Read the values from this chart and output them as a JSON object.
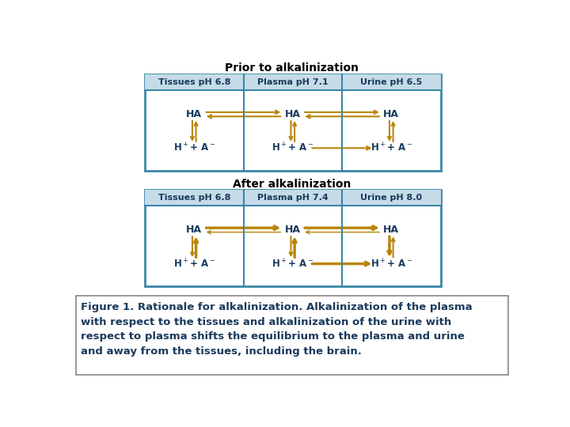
{
  "bg_color": "#ffffff",
  "border_color": "#3a86a8",
  "header_bg": "#c5dce8",
  "arrow_color": "#b8860b",
  "text_color_dark": "#1a3a5c",
  "title1": "Prior to alkalinization",
  "title2": "After alkalinization",
  "panel1_headers": [
    "Tissues pH 6.8",
    "Plasma pH 7.1",
    "Urine pH 6.5"
  ],
  "panel2_headers": [
    "Tissues pH 6.8",
    "Plasma pH 7.4",
    "Urine pH 8.0"
  ],
  "caption": "Figure 1. Rationale for alkalinization. Alkalinization of the plasma\nwith respect to the tissues and alkalinization of the urine with\nrespect to plasma shifts the equilibrium to the plasma and urine\nand away from the tissues, including the brain.",
  "caption_color": "#1a3a5c",
  "caption_border": "#888888"
}
